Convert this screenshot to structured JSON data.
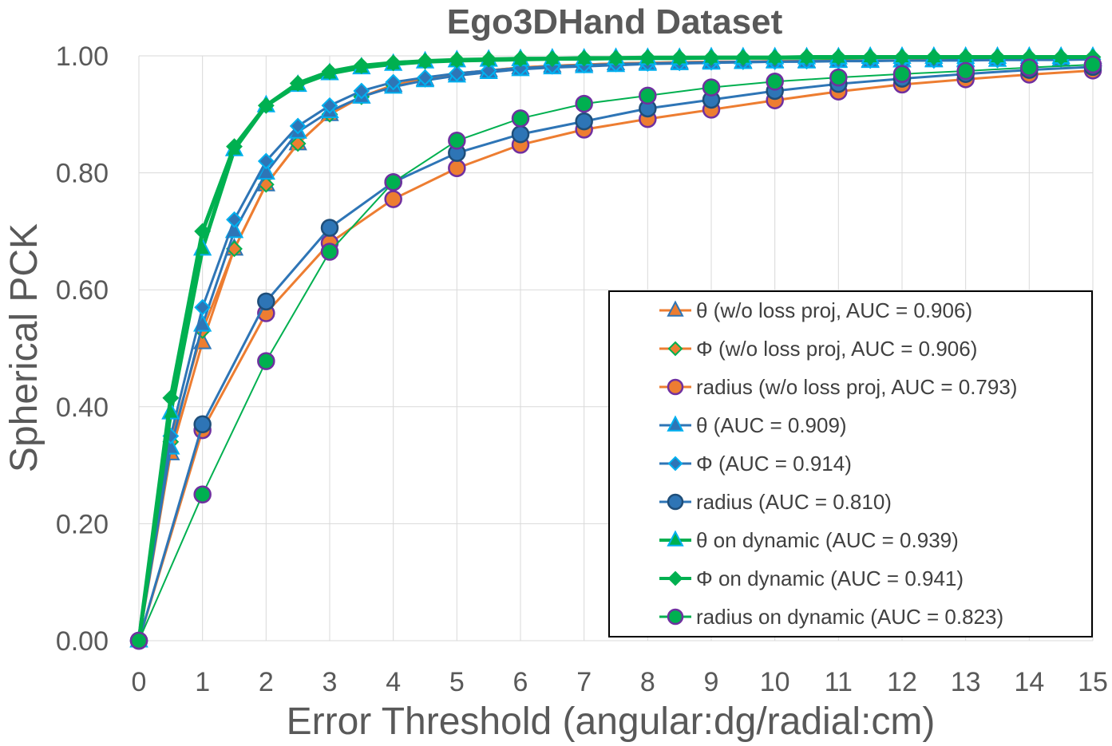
{
  "chart_data": {
    "type": "line",
    "title": "Ego3DHand Dataset",
    "xlabel": "Error Threshold (angular:dg/radial:cm)",
    "ylabel": "Spherical PCK",
    "xlim": [
      0,
      15
    ],
    "ylim": [
      0,
      1
    ],
    "x_ticks": [
      "0",
      "1",
      "2",
      "3",
      "4",
      "5",
      "6",
      "7",
      "8",
      "9",
      "10",
      "11",
      "12",
      "13",
      "14",
      "15"
    ],
    "y_ticks": [
      "0.00",
      "0.20",
      "0.40",
      "0.60",
      "0.80",
      "1.00"
    ],
    "grid": true,
    "legend_position": "bottom-right",
    "x_dense": [
      0,
      0.5,
      1,
      1.5,
      2,
      2.5,
      3,
      3.5,
      4,
      4.5,
      5,
      5.5,
      6,
      6.5,
      7,
      7.5,
      8,
      8.5,
      9,
      9.5,
      10,
      10.5,
      11,
      11.5,
      12,
      12.5,
      13,
      13.5,
      14,
      14.5,
      15
    ],
    "x_radius": [
      0,
      1,
      2,
      3,
      4,
      5,
      6,
      7,
      8,
      9,
      10,
      11,
      12,
      13,
      14,
      15
    ],
    "colors": {
      "orange": "#ED7D31",
      "blue": "#2E75B6",
      "green": "#00B050",
      "cyan": "#00B0F0",
      "purple": "#7030A0"
    },
    "series": [
      {
        "name": "θ (w/o loss proj, AUC = 0.906)",
        "x_key": "x_dense",
        "values": [
          0,
          0.32,
          0.51,
          0.67,
          0.78,
          0.85,
          0.9,
          0.93,
          0.95,
          0.96,
          0.97,
          0.975,
          0.98,
          0.983,
          0.985,
          0.987,
          0.988,
          0.989,
          0.99,
          0.99,
          0.991,
          0.991,
          0.992,
          0.992,
          0.992,
          0.993,
          0.993,
          0.993,
          0.994,
          0.994,
          0.994
        ],
        "line": "#ED7D31",
        "marker": "triangle",
        "fill": "#ED7D31",
        "stroke": "#2E75B6",
        "width": 3
      },
      {
        "name": "Φ (w/o loss proj, AUC = 0.906)",
        "x_key": "x_dense",
        "values": [
          0,
          0.34,
          0.53,
          0.67,
          0.78,
          0.85,
          0.9,
          0.93,
          0.95,
          0.96,
          0.97,
          0.975,
          0.98,
          0.983,
          0.985,
          0.987,
          0.988,
          0.989,
          0.99,
          0.99,
          0.991,
          0.991,
          0.992,
          0.992,
          0.992,
          0.993,
          0.993,
          0.993,
          0.994,
          0.994,
          0.994
        ],
        "line": "#ED7D31",
        "marker": "diamond",
        "fill": "#ED7D31",
        "stroke": "#00B050",
        "width": 3
      },
      {
        "name": "radius (w/o loss proj, AUC = 0.793)",
        "x_key": "x_radius",
        "values": [
          0,
          0.36,
          0.56,
          0.68,
          0.755,
          0.808,
          0.848,
          0.874,
          0.892,
          0.908,
          0.924,
          0.939,
          0.951,
          0.96,
          0.968,
          0.975
        ],
        "line": "#ED7D31",
        "marker": "circle",
        "fill": "#ED7D31",
        "stroke": "#7030A0",
        "width": 3
      },
      {
        "name": "θ (AUC = 0.909)",
        "x_key": "x_dense",
        "values": [
          0,
          0.33,
          0.54,
          0.7,
          0.8,
          0.87,
          0.905,
          0.93,
          0.947,
          0.958,
          0.966,
          0.972,
          0.977,
          0.98,
          0.982,
          0.984,
          0.986,
          0.987,
          0.988,
          0.989,
          0.99,
          0.99,
          0.991,
          0.991,
          0.992,
          0.992,
          0.992,
          0.993,
          0.993,
          0.993,
          0.994
        ],
        "line": "#2E75B6",
        "marker": "triangle",
        "fill": "#2E75B6",
        "stroke": "#00B0F0",
        "width": 3
      },
      {
        "name": "Φ (AUC = 0.914)",
        "x_key": "x_dense",
        "values": [
          0,
          0.35,
          0.57,
          0.72,
          0.82,
          0.88,
          0.915,
          0.94,
          0.955,
          0.963,
          0.97,
          0.975,
          0.979,
          0.982,
          0.984,
          0.986,
          0.987,
          0.988,
          0.989,
          0.99,
          0.99,
          0.991,
          0.991,
          0.992,
          0.992,
          0.992,
          0.993,
          0.993,
          0.993,
          0.994,
          0.994
        ],
        "line": "#2E75B6",
        "marker": "diamond",
        "fill": "#2E75B6",
        "stroke": "#00B0F0",
        "width": 3
      },
      {
        "name": "radius (AUC = 0.810)",
        "x_key": "x_radius",
        "values": [
          0,
          0.37,
          0.58,
          0.706,
          0.784,
          0.834,
          0.866,
          0.888,
          0.91,
          0.925,
          0.94,
          0.952,
          0.961,
          0.969,
          0.976,
          0.981
        ],
        "line": "#2E75B6",
        "marker": "circle",
        "fill": "#2E75B6",
        "stroke": "#1F4E79",
        "width": 3
      },
      {
        "name": "θ on dynamic (AUC = 0.939)",
        "x_key": "x_dense",
        "values": [
          0,
          0.39,
          0.67,
          0.84,
          0.915,
          0.95,
          0.97,
          0.98,
          0.986,
          0.99,
          0.992,
          0.993,
          0.994,
          0.995,
          0.995,
          0.996,
          0.996,
          0.996,
          0.997,
          0.997,
          0.997,
          0.997,
          0.997,
          0.998,
          0.998,
          0.998,
          0.998,
          0.998,
          0.998,
          0.998,
          0.998
        ],
        "line": "#00B050",
        "marker": "triangle",
        "fill": "#00B050",
        "stroke": "#00B0F0",
        "width": 5
      },
      {
        "name": "Φ on dynamic (AUC = 0.941)",
        "x_key": "x_dense",
        "values": [
          0,
          0.415,
          0.7,
          0.845,
          0.915,
          0.953,
          0.973,
          0.983,
          0.988,
          0.991,
          0.993,
          0.994,
          0.995,
          0.995,
          0.996,
          0.996,
          0.997,
          0.997,
          0.997,
          0.997,
          0.997,
          0.998,
          0.998,
          0.998,
          0.998,
          0.998,
          0.998,
          0.998,
          0.998,
          0.998,
          0.998
        ],
        "line": "#00B050",
        "marker": "diamond",
        "fill": "#00B050",
        "stroke": "#00B050",
        "width": 5
      },
      {
        "name": "radius on dynamic (AUC = 0.823)",
        "x_key": "x_radius",
        "values": [
          0,
          0.25,
          0.478,
          0.665,
          0.784,
          0.855,
          0.893,
          0.918,
          0.932,
          0.946,
          0.956,
          0.963,
          0.969,
          0.974,
          0.98,
          0.985
        ],
        "line": "#00B050",
        "marker": "circle",
        "fill": "#00B050",
        "stroke": "#7030A0",
        "width": 2
      }
    ]
  }
}
